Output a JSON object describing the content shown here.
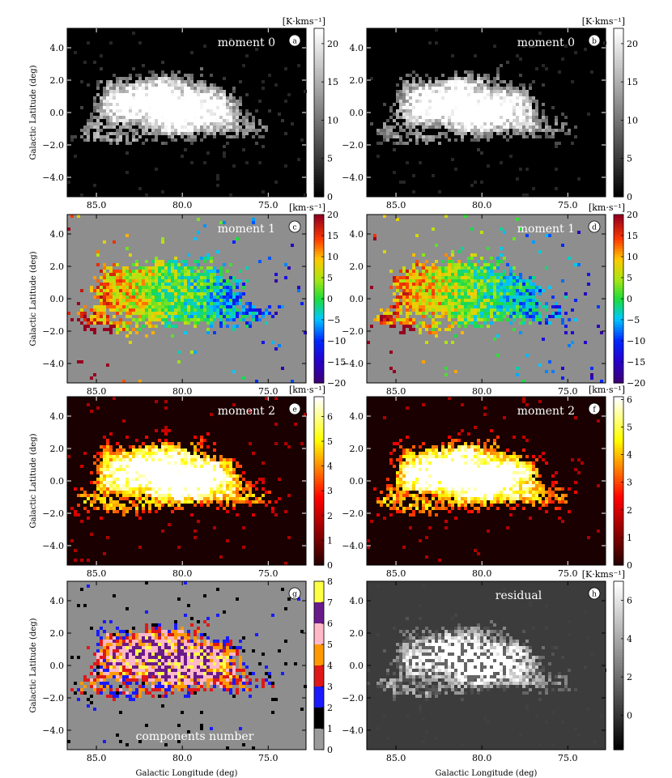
{
  "figure": {
    "xlabel": "Galactic Longitude (deg)",
    "ylabel": "Galactic Latitude (deg)",
    "x_ticks": [
      "85.0",
      "80.0",
      "75.0"
    ],
    "y_ticks": [
      "4.0",
      "2.0",
      "0.0",
      "−2.0",
      "−4.0"
    ]
  },
  "chart_data": [
    {
      "type": "heatmap",
      "letter": "a",
      "title": "moment 0",
      "unit": "[K·kms⁻¹]",
      "colormap": "gray",
      "xlim": [
        86.7,
        72.8
      ],
      "ylim": [
        -5.2,
        5.2
      ],
      "clim": [
        0,
        22
      ],
      "cbar_ticks": [
        0,
        5,
        10,
        15,
        20
      ],
      "cbar_labels": [
        "0",
        "5",
        "10",
        "15",
        "20"
      ]
    },
    {
      "type": "heatmap",
      "letter": "b",
      "title": "moment 0",
      "unit": "[K·kms⁻¹]",
      "colormap": "gray",
      "xlim": [
        86.7,
        72.8
      ],
      "ylim": [
        -5.2,
        5.2
      ],
      "clim": [
        0,
        22
      ],
      "cbar_ticks": [
        0,
        5,
        10,
        15,
        20
      ],
      "cbar_labels": [
        "0",
        "5",
        "10",
        "15",
        "20"
      ]
    },
    {
      "type": "heatmap",
      "letter": "c",
      "title": "moment 1",
      "unit": "[km·s⁻¹]",
      "colormap": "jet",
      "xlim": [
        86.7,
        72.8
      ],
      "ylim": [
        -5.2,
        5.2
      ],
      "clim": [
        -20,
        20
      ],
      "cbar_ticks": [
        -20,
        -15,
        -10,
        -5,
        0,
        5,
        10,
        15,
        20
      ],
      "cbar_labels": [
        "−20",
        "−15",
        "−10",
        "−5",
        "0",
        "5",
        "10",
        "15",
        "20"
      ]
    },
    {
      "type": "heatmap",
      "letter": "d",
      "title": "moment 1",
      "unit": "[km·s⁻¹]",
      "colormap": "jet",
      "xlim": [
        86.7,
        72.8
      ],
      "ylim": [
        -5.2,
        5.2
      ],
      "clim": [
        -20,
        20
      ],
      "cbar_ticks": [
        -20,
        -15,
        -10,
        -5,
        0,
        5,
        10,
        15,
        20
      ],
      "cbar_labels": [
        "−20",
        "−15",
        "−10",
        "−5",
        "0",
        "5",
        "10",
        "15",
        "20"
      ]
    },
    {
      "type": "heatmap",
      "letter": "e",
      "title": "moment 2",
      "unit": "[km·s⁻¹]",
      "colormap": "hot",
      "xlim": [
        86.7,
        72.8
      ],
      "ylim": [
        -5.2,
        5.2
      ],
      "clim": [
        0,
        6.8
      ],
      "cbar_ticks": [
        0,
        1,
        2,
        3,
        4,
        5,
        6
      ],
      "cbar_labels": [
        "0",
        "1",
        "2",
        "3",
        "4",
        "5",
        "6"
      ]
    },
    {
      "type": "heatmap",
      "letter": "f",
      "title": "moment 2",
      "unit": "[km·s⁻¹]",
      "colormap": "hot",
      "xlim": [
        86.7,
        72.8
      ],
      "ylim": [
        -5.2,
        5.2
      ],
      "clim": [
        0,
        6.1
      ],
      "cbar_ticks": [
        0,
        1,
        2,
        3,
        4,
        5,
        6
      ],
      "cbar_labels": [
        "0",
        "1",
        "2",
        "3",
        "4",
        "5",
        "6"
      ]
    },
    {
      "type": "heatmap",
      "letter": "g",
      "title": "components number",
      "unit": "",
      "colormap": "discrete",
      "xlim": [
        86.7,
        72.8
      ],
      "ylim": [
        -5.2,
        5.2
      ],
      "clim": [
        0,
        8
      ],
      "cbar_ticks": [
        0,
        1,
        2,
        3,
        4,
        5,
        6,
        7,
        8
      ],
      "cbar_labels": [
        "0",
        "1",
        "2",
        "3",
        "4",
        "5",
        "6",
        "7",
        "8"
      ],
      "discrete_colors": [
        "#a0a0a0",
        "#000000",
        "#1a1aff",
        "#e01818",
        "#ff9900",
        "#ffb8c8",
        "#6a1a8a",
        "#ffff44"
      ]
    },
    {
      "type": "heatmap",
      "letter": "h",
      "title": "residual",
      "unit": "[K·kms⁻¹]",
      "colormap": "gray",
      "xlim": [
        86.7,
        72.8
      ],
      "ylim": [
        -5.2,
        5.2
      ],
      "clim": [
        -1.8,
        7
      ],
      "cbar_ticks": [
        0,
        2,
        4,
        6
      ],
      "cbar_labels": [
        "0",
        "2",
        "4",
        "6"
      ]
    }
  ]
}
